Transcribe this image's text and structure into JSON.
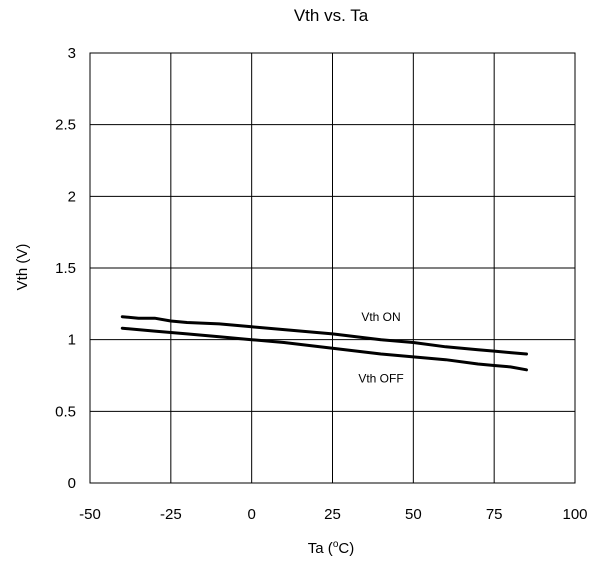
{
  "chart_data": {
    "type": "line",
    "title": "Vth vs. Ta",
    "xlabel_main": "Ta (",
    "xlabel_sup": "o",
    "xlabel_tail": "C)",
    "ylabel": "Vth (V)",
    "xlim": [
      -50,
      100
    ],
    "ylim": [
      0,
      3
    ],
    "x_ticks": [
      "-50",
      "-25",
      "0",
      "25",
      "50",
      "75",
      "100"
    ],
    "y_ticks": [
      "0",
      "0.5",
      "1",
      "1.5",
      "2",
      "2.5",
      "3"
    ],
    "grid": true,
    "series": [
      {
        "name": "Vth ON",
        "x": [
          -40,
          -35,
          -30,
          -25,
          -20,
          -10,
          0,
          10,
          25,
          40,
          50,
          60,
          70,
          75,
          80,
          85
        ],
        "y": [
          1.16,
          1.15,
          1.15,
          1.13,
          1.12,
          1.11,
          1.09,
          1.07,
          1.04,
          1.0,
          0.98,
          0.95,
          0.93,
          0.92,
          0.91,
          0.9
        ]
      },
      {
        "name": "Vth OFF",
        "x": [
          -40,
          -30,
          -20,
          -10,
          0,
          10,
          25,
          40,
          50,
          60,
          70,
          75,
          80,
          85
        ],
        "y": [
          1.08,
          1.06,
          1.04,
          1.02,
          1.0,
          0.98,
          0.94,
          0.9,
          0.88,
          0.86,
          0.83,
          0.82,
          0.81,
          0.79
        ]
      }
    ],
    "series_label_positions": [
      {
        "x": 40,
        "y": 1.13
      },
      {
        "x": 40,
        "y": 0.7
      }
    ]
  }
}
